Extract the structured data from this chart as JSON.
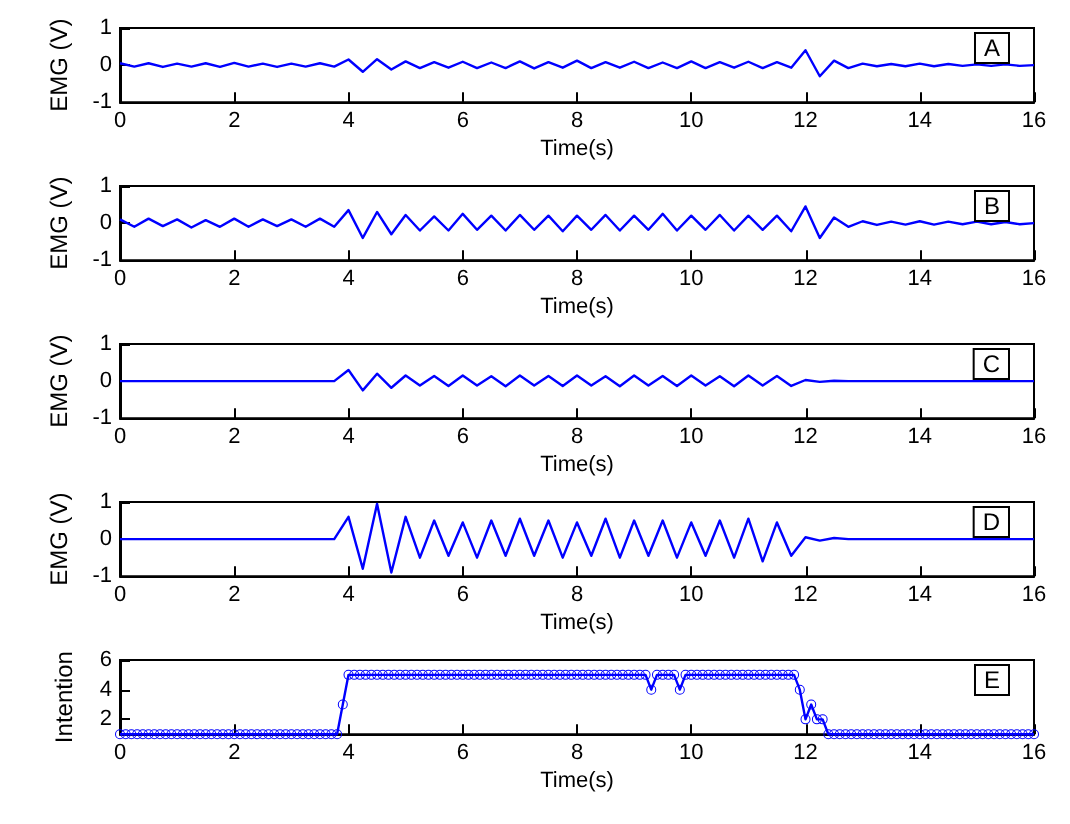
{
  "chart_data": [
    {
      "type": "line",
      "x": [
        0,
        0.25,
        0.5,
        0.75,
        1,
        1.25,
        1.5,
        1.75,
        2,
        2.25,
        2.5,
        2.75,
        3,
        3.25,
        3.5,
        3.75,
        4,
        4.25,
        4.5,
        4.75,
        5,
        5.25,
        5.5,
        5.75,
        6,
        6.25,
        6.5,
        6.75,
        7,
        7.25,
        7.5,
        7.75,
        8,
        8.25,
        8.5,
        8.75,
        9,
        9.25,
        9.5,
        9.75,
        10,
        10.25,
        10.5,
        10.75,
        11,
        11.25,
        11.5,
        11.75,
        12,
        12.25,
        12.5,
        12.75,
        13,
        13.25,
        13.5,
        13.75,
        14,
        14.25,
        14.5,
        14.75,
        15,
        15.25,
        15.5,
        15.75,
        16
      ],
      "series": [
        {
          "color": "#0000ff",
          "values": [
            0.05,
            -0.04,
            0.05,
            -0.05,
            0.04,
            -0.04,
            0.05,
            -0.05,
            0.06,
            -0.04,
            0.04,
            -0.05,
            0.04,
            -0.04,
            0.05,
            -0.04,
            0.15,
            -0.18,
            0.16,
            -0.12,
            0.1,
            -0.08,
            0.08,
            -0.07,
            0.09,
            -0.08,
            0.07,
            -0.08,
            0.1,
            -0.09,
            0.08,
            -0.07,
            0.12,
            -0.08,
            0.08,
            -0.07,
            0.09,
            -0.08,
            0.07,
            -0.08,
            0.1,
            -0.08,
            0.08,
            -0.07,
            0.09,
            -0.08,
            0.08,
            -0.07,
            0.4,
            -0.3,
            0.12,
            -0.08,
            0.04,
            -0.03,
            0.03,
            -0.03,
            0.04,
            -0.03,
            0.03,
            -0.02,
            0.02,
            -0.02,
            0.02,
            -0.02,
            0
          ]
        }
      ],
      "xlabel": "Time(s)",
      "ylabel": "EMG (V)",
      "xlim": [
        0,
        16
      ],
      "xticks": [
        0,
        2,
        4,
        6,
        8,
        10,
        12,
        14,
        16
      ],
      "ylim": [
        -1,
        1
      ],
      "yticks": [
        -1,
        0,
        1
      ],
      "grid": false,
      "marker": "none",
      "line_style": "solid",
      "annotations": [
        "A"
      ]
    },
    {
      "type": "line",
      "x": [
        0,
        0.25,
        0.5,
        0.75,
        1,
        1.25,
        1.5,
        1.75,
        2,
        2.25,
        2.5,
        2.75,
        3,
        3.25,
        3.5,
        3.75,
        4,
        4.25,
        4.5,
        4.75,
        5,
        5.25,
        5.5,
        5.75,
        6,
        6.25,
        6.5,
        6.75,
        7,
        7.25,
        7.5,
        7.75,
        8,
        8.25,
        8.5,
        8.75,
        9,
        9.25,
        9.5,
        9.75,
        10,
        10.25,
        10.5,
        10.75,
        11,
        11.25,
        11.5,
        11.75,
        12,
        12.25,
        12.5,
        12.75,
        13,
        13.25,
        13.5,
        13.75,
        14,
        14.25,
        14.5,
        14.75,
        15,
        15.25,
        15.5,
        15.75,
        16
      ],
      "series": [
        {
          "color": "#0000ff",
          "values": [
            0.1,
            -0.1,
            0.12,
            -0.08,
            0.1,
            -0.12,
            0.08,
            -0.1,
            0.12,
            -0.1,
            0.1,
            -0.08,
            0.1,
            -0.1,
            0.12,
            -0.1,
            0.35,
            -0.4,
            0.3,
            -0.3,
            0.22,
            -0.2,
            0.18,
            -0.2,
            0.25,
            -0.18,
            0.2,
            -0.2,
            0.22,
            -0.18,
            0.2,
            -0.22,
            0.2,
            -0.18,
            0.22,
            -0.2,
            0.2,
            -0.18,
            0.25,
            -0.2,
            0.2,
            -0.18,
            0.22,
            -0.2,
            0.2,
            -0.18,
            0.2,
            -0.22,
            0.45,
            -0.4,
            0.15,
            -0.1,
            0.05,
            -0.05,
            0.04,
            -0.04,
            0.05,
            -0.04,
            0.04,
            -0.03,
            0.04,
            -0.03,
            0.03,
            -0.03,
            0
          ]
        }
      ],
      "xlabel": "Time(s)",
      "ylabel": "EMG (V)",
      "xlim": [
        0,
        16
      ],
      "xticks": [
        0,
        2,
        4,
        6,
        8,
        10,
        12,
        14,
        16
      ],
      "ylim": [
        -1,
        1
      ],
      "yticks": [
        -1,
        0,
        1
      ],
      "grid": false,
      "marker": "none",
      "line_style": "solid",
      "annotations": [
        "B"
      ]
    },
    {
      "type": "line",
      "x": [
        0,
        0.25,
        0.5,
        0.75,
        1,
        1.25,
        1.5,
        1.75,
        2,
        2.25,
        2.5,
        2.75,
        3,
        3.25,
        3.5,
        3.75,
        4,
        4.25,
        4.5,
        4.75,
        5,
        5.25,
        5.5,
        5.75,
        6,
        6.25,
        6.5,
        6.75,
        7,
        7.25,
        7.5,
        7.75,
        8,
        8.25,
        8.5,
        8.75,
        9,
        9.25,
        9.5,
        9.75,
        10,
        10.25,
        10.5,
        10.75,
        11,
        11.25,
        11.5,
        11.75,
        12,
        12.25,
        12.5,
        12.75,
        13,
        13.25,
        13.5,
        13.75,
        14,
        14.25,
        14.5,
        14.75,
        15,
        15.25,
        15.5,
        15.75,
        16
      ],
      "series": [
        {
          "color": "#0000ff",
          "values": [
            0,
            0,
            0,
            0,
            0,
            0,
            0,
            0,
            0,
            0,
            0,
            0,
            0,
            0,
            0,
            0,
            0.3,
            -0.25,
            0.2,
            -0.18,
            0.15,
            -0.12,
            0.14,
            -0.13,
            0.15,
            -0.12,
            0.13,
            -0.14,
            0.15,
            -0.12,
            0.14,
            -0.13,
            0.15,
            -0.12,
            0.13,
            -0.14,
            0.15,
            -0.12,
            0.14,
            -0.13,
            0.15,
            -0.12,
            0.13,
            -0.14,
            0.15,
            -0.12,
            0.14,
            -0.13,
            0.03,
            -0.02,
            0.01,
            0,
            0,
            0,
            0,
            0,
            0,
            0,
            0,
            0,
            0,
            0,
            0,
            0,
            0
          ]
        }
      ],
      "xlabel": "Time(s)",
      "ylabel": "EMG (V)",
      "xlim": [
        0,
        16
      ],
      "xticks": [
        0,
        2,
        4,
        6,
        8,
        10,
        12,
        14,
        16
      ],
      "ylim": [
        -1,
        1
      ],
      "yticks": [
        -1,
        0,
        1
      ],
      "grid": false,
      "marker": "none",
      "line_style": "solid",
      "annotations": [
        "C"
      ]
    },
    {
      "type": "line",
      "x": [
        0,
        0.25,
        0.5,
        0.75,
        1,
        1.25,
        1.5,
        1.75,
        2,
        2.25,
        2.5,
        2.75,
        3,
        3.25,
        3.5,
        3.75,
        4,
        4.25,
        4.5,
        4.75,
        5,
        5.25,
        5.5,
        5.75,
        6,
        6.25,
        6.5,
        6.75,
        7,
        7.25,
        7.5,
        7.75,
        8,
        8.25,
        8.5,
        8.75,
        9,
        9.25,
        9.5,
        9.75,
        10,
        10.25,
        10.5,
        10.75,
        11,
        11.25,
        11.5,
        11.75,
        12,
        12.25,
        12.5,
        12.75,
        13,
        13.25,
        13.5,
        13.75,
        14,
        14.25,
        14.5,
        14.75,
        15,
        15.25,
        15.5,
        15.75,
        16
      ],
      "series": [
        {
          "color": "#0000ff",
          "values": [
            0,
            0,
            0,
            0,
            0,
            0,
            0,
            0,
            0,
            0,
            0,
            0,
            0,
            0,
            0,
            0,
            0.6,
            -0.8,
            0.95,
            -0.9,
            0.6,
            -0.5,
            0.5,
            -0.45,
            0.45,
            -0.5,
            0.5,
            -0.45,
            0.55,
            -0.45,
            0.5,
            -0.5,
            0.45,
            -0.45,
            0.55,
            -0.5,
            0.5,
            -0.45,
            0.5,
            -0.5,
            0.45,
            -0.45,
            0.5,
            -0.5,
            0.55,
            -0.6,
            0.45,
            -0.45,
            0.05,
            -0.04,
            0.03,
            0,
            0,
            0,
            0,
            0,
            0,
            0,
            0,
            0,
            0,
            0,
            0,
            0,
            0
          ]
        }
      ],
      "xlabel": "Time(s)",
      "ylabel": "EMG (V)",
      "xlim": [
        0,
        16
      ],
      "xticks": [
        0,
        2,
        4,
        6,
        8,
        10,
        12,
        14,
        16
      ],
      "ylim": [
        -1,
        1
      ],
      "yticks": [
        -1,
        0,
        1
      ],
      "grid": false,
      "marker": "none",
      "line_style": "solid",
      "annotations": [
        "D"
      ]
    },
    {
      "type": "line",
      "x": [
        0,
        0.1,
        0.2,
        0.3,
        0.4,
        0.5,
        0.6,
        0.7,
        0.8,
        0.9,
        1,
        1.1,
        1.2,
        1.3,
        1.4,
        1.5,
        1.6,
        1.7,
        1.8,
        1.9,
        2,
        2.1,
        2.2,
        2.3,
        2.4,
        2.5,
        2.6,
        2.7,
        2.8,
        2.9,
        3,
        3.1,
        3.2,
        3.3,
        3.4,
        3.5,
        3.6,
        3.7,
        3.8,
        3.9,
        4,
        4.1,
        4.2,
        4.3,
        4.4,
        4.5,
        4.6,
        4.7,
        4.8,
        4.9,
        5,
        5.1,
        5.2,
        5.3,
        5.4,
        5.5,
        5.6,
        5.7,
        5.8,
        5.9,
        6,
        6.1,
        6.2,
        6.3,
        6.4,
        6.5,
        6.6,
        6.7,
        6.8,
        6.9,
        7,
        7.1,
        7.2,
        7.3,
        7.4,
        7.5,
        7.6,
        7.7,
        7.8,
        7.9,
        8,
        8.1,
        8.2,
        8.3,
        8.4,
        8.5,
        8.6,
        8.7,
        8.8,
        8.9,
        9,
        9.1,
        9.2,
        9.3,
        9.4,
        9.5,
        9.6,
        9.7,
        9.8,
        9.9,
        10,
        10.1,
        10.2,
        10.3,
        10.4,
        10.5,
        10.6,
        10.7,
        10.8,
        10.9,
        11,
        11.1,
        11.2,
        11.3,
        11.4,
        11.5,
        11.6,
        11.7,
        11.8,
        11.9,
        12,
        12.1,
        12.2,
        12.3,
        12.4,
        12.5,
        12.6,
        12.7,
        12.8,
        12.9,
        13,
        13.1,
        13.2,
        13.3,
        13.4,
        13.5,
        13.6,
        13.7,
        13.8,
        13.9,
        14,
        14.1,
        14.2,
        14.3,
        14.4,
        14.5,
        14.6,
        14.7,
        14.8,
        14.9,
        15,
        15.1,
        15.2,
        15.3,
        15.4,
        15.5,
        15.6,
        15.7,
        15.8,
        15.9,
        16
      ],
      "series": [
        {
          "color": "#0000ff",
          "values": [
            1,
            1,
            1,
            1,
            1,
            1,
            1,
            1,
            1,
            1,
            1,
            1,
            1,
            1,
            1,
            1,
            1,
            1,
            1,
            1,
            1,
            1,
            1,
            1,
            1,
            1,
            1,
            1,
            1,
            1,
            1,
            1,
            1,
            1,
            1,
            1,
            1,
            1,
            1,
            3,
            5,
            5,
            5,
            5,
            5,
            5,
            5,
            5,
            5,
            5,
            5,
            5,
            5,
            5,
            5,
            5,
            5,
            5,
            5,
            5,
            5,
            5,
            5,
            5,
            5,
            5,
            5,
            5,
            5,
            5,
            5,
            5,
            5,
            5,
            5,
            5,
            5,
            5,
            5,
            5,
            5,
            5,
            5,
            5,
            5,
            5,
            5,
            5,
            5,
            5,
            5,
            5,
            5,
            4,
            5,
            5,
            5,
            5,
            4,
            5,
            5,
            5,
            5,
            5,
            5,
            5,
            5,
            5,
            5,
            5,
            5,
            5,
            5,
            5,
            5,
            5,
            5,
            5,
            5,
            4,
            2,
            3,
            2,
            2,
            1,
            1,
            1,
            1,
            1,
            1,
            1,
            1,
            1,
            1,
            1,
            1,
            1,
            1,
            1,
            1,
            1,
            1,
            1,
            1,
            1,
            1,
            1,
            1,
            1,
            1,
            1,
            1,
            1,
            1,
            1,
            1,
            1,
            1,
            1,
            1,
            1
          ]
        }
      ],
      "xlabel": "Time(s)",
      "ylabel": "Intention",
      "xlim": [
        0,
        16
      ],
      "xticks": [
        0,
        2,
        4,
        6,
        8,
        10,
        12,
        14,
        16
      ],
      "ylim": [
        1,
        6
      ],
      "yticks": [
        2,
        4,
        6
      ],
      "grid": false,
      "marker": "circle",
      "line_style": "solid",
      "annotations": [
        "E"
      ]
    }
  ]
}
